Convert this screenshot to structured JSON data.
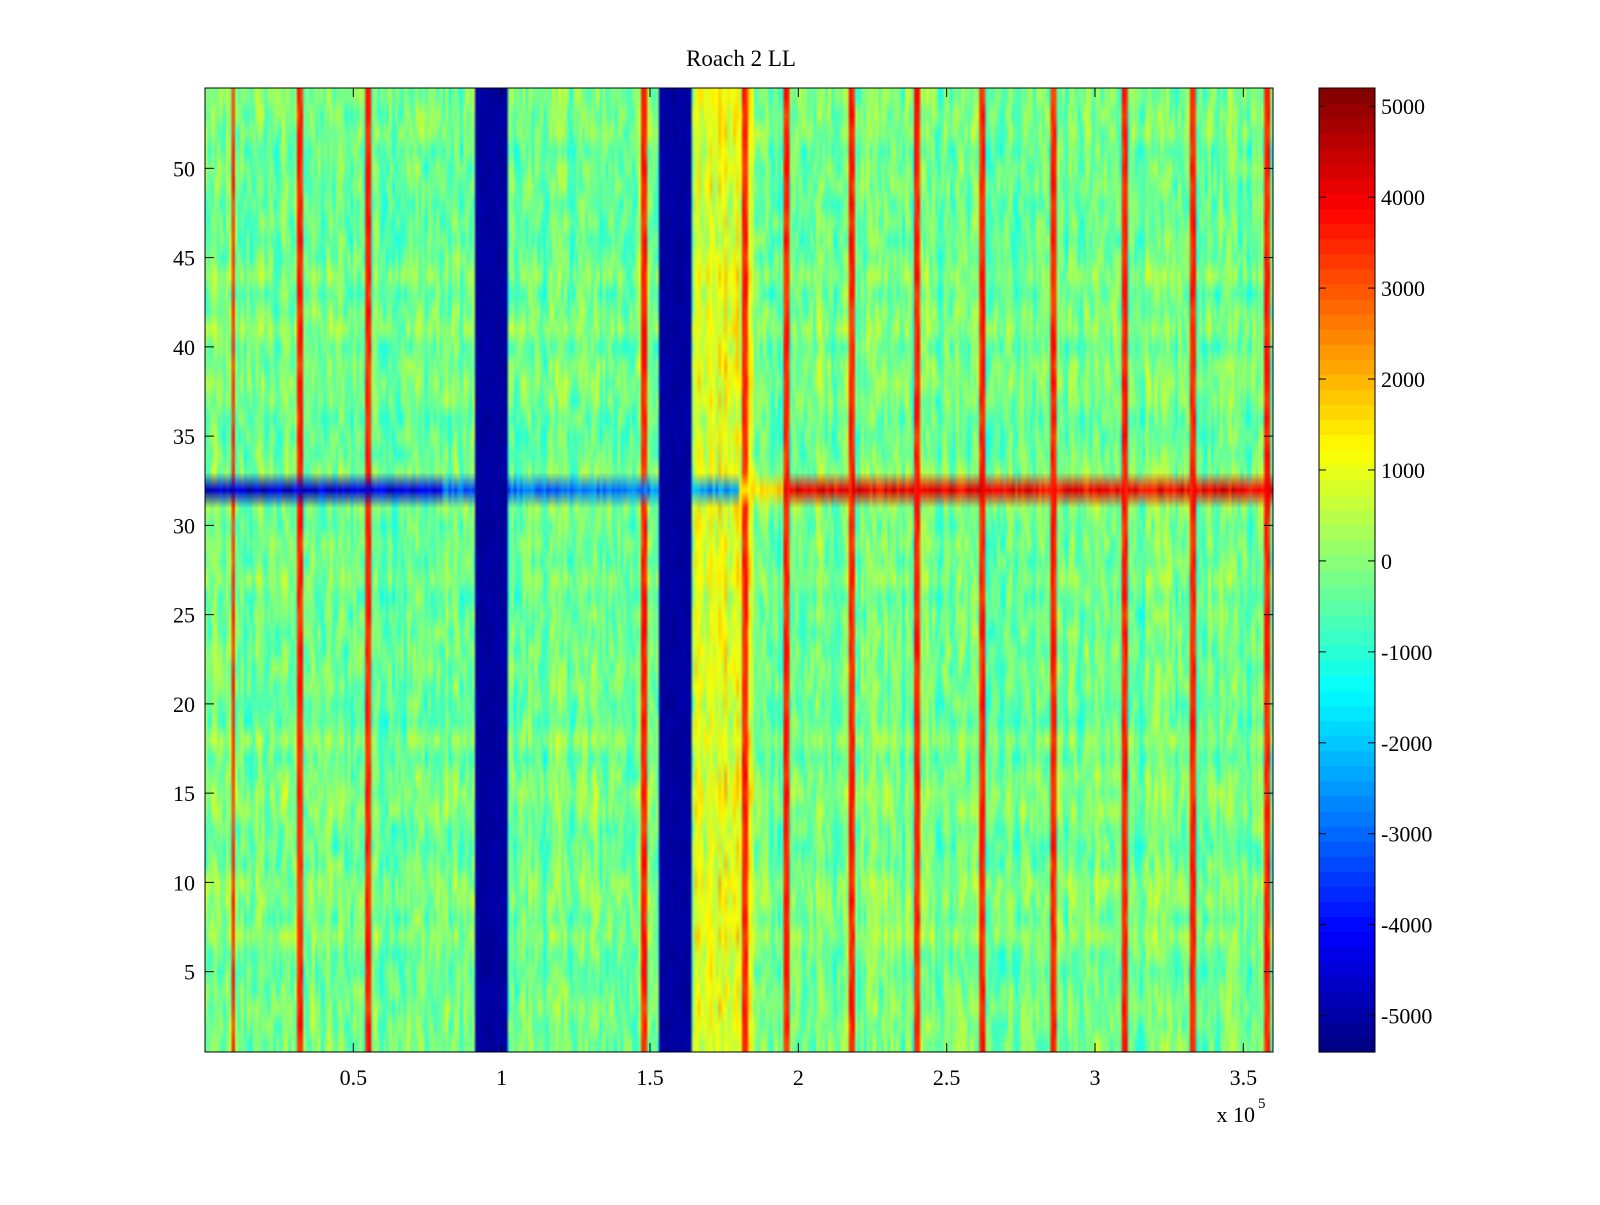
{
  "chart_data": {
    "type": "heatmap",
    "title": "Roach 2 LL",
    "xlabel": "",
    "ylabel": "",
    "x_range": [
      0,
      360000
    ],
    "y_range": [
      0.5,
      54.5
    ],
    "x_ticks": [
      50000,
      100000,
      150000,
      200000,
      250000,
      300000,
      350000
    ],
    "x_tick_labels": [
      "0.5",
      "1",
      "1.5",
      "2",
      "2.5",
      "3",
      "3.5"
    ],
    "x_exponent_base": "x 10",
    "x_exponent_power": "5",
    "y_ticks": [
      5,
      10,
      15,
      20,
      25,
      30,
      35,
      40,
      45,
      50
    ],
    "y_tick_labels": [
      "5",
      "10",
      "15",
      "20",
      "25",
      "30",
      "35",
      "40",
      "45",
      "50"
    ],
    "colorbar": {
      "colormap": "jet",
      "clim": [
        -5400,
        5200
      ],
      "ticks": [
        -5000,
        -4000,
        -3000,
        -2000,
        -1000,
        0,
        1000,
        2000,
        3000,
        4000,
        5000
      ],
      "tick_labels": [
        "-5000",
        "-4000",
        "-3000",
        "-2000",
        "-1000",
        "0",
        "1000",
        "2000",
        "3000",
        "4000",
        "5000"
      ]
    },
    "rows": 54,
    "baseline_value_range": [
      -1500,
      1500
    ],
    "low_bands_x": [
      [
        91000,
        102000
      ],
      [
        153000,
        164000
      ]
    ],
    "low_band_value": -5200,
    "vertical_spike_lines_x": [
      9500,
      32000,
      55000,
      148000,
      154500,
      182000,
      196000,
      218000,
      240000,
      262000,
      286000,
      310000,
      333000,
      358000
    ],
    "vertical_spike_value": 3500,
    "anomalous_row": 32,
    "anomalous_row_profile": [
      {
        "x_from": 0,
        "x_to": 80000,
        "value": -4500
      },
      {
        "x_from": 80000,
        "x_to": 150000,
        "value": -3000
      },
      {
        "x_from": 150000,
        "x_to": 180000,
        "value": -2500
      },
      {
        "x_from": 180000,
        "x_to": 195000,
        "value": 1500
      },
      {
        "x_from": 195000,
        "x_to": 360000,
        "value": 4000
      }
    ]
  }
}
